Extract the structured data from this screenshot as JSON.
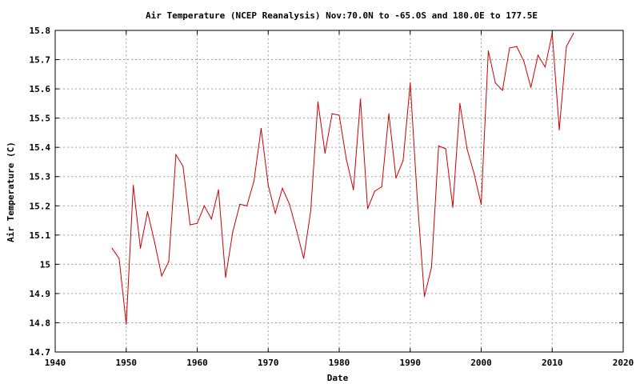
{
  "chart_data": {
    "type": "line",
    "title": "Air Temperature (NCEP Reanalysis) Nov:70.0N to -65.0S and 180.0E to 177.5E",
    "xlabel": "Date",
    "ylabel": "Air Temperature (C)",
    "xlim": [
      1940,
      2020
    ],
    "ylim": [
      14.7,
      15.8
    ],
    "xticks": [
      "1940",
      "1950",
      "1960",
      "1970",
      "1980",
      "1990",
      "2000",
      "2010",
      "2020"
    ],
    "yticks": [
      "14.7",
      "14.8",
      "14.9",
      "15",
      "15.1",
      "15.2",
      "15.3",
      "15.4",
      "15.5",
      "15.6",
      "15.7",
      "15.8"
    ],
    "grid": true,
    "color": "#cc0000",
    "series": [
      {
        "x": [
          1948,
          1949,
          1950,
          1951,
          1952,
          1953,
          1954,
          1955,
          1956,
          1957,
          1958,
          1959,
          1960,
          1961,
          1962,
          1963,
          1964,
          1965,
          1966,
          1967,
          1968,
          1969,
          1970,
          1971,
          1972,
          1973,
          1974,
          1975,
          1976,
          1977,
          1978,
          1979,
          1980,
          1981,
          1982,
          1983,
          1984,
          1985,
          1986,
          1987,
          1988,
          1989,
          1990,
          1991,
          1992,
          1993,
          1994,
          1995,
          1996,
          1997,
          1998,
          1999,
          2000,
          2001,
          2002,
          2003,
          2004,
          2005,
          2006,
          2007,
          2008,
          2009,
          2010,
          2011,
          2012,
          2013
        ],
        "y": [
          15.055,
          15.02,
          14.795,
          15.27,
          15.055,
          15.18,
          15.075,
          14.96,
          15.01,
          15.375,
          15.335,
          15.135,
          15.14,
          15.2,
          15.155,
          15.255,
          14.955,
          15.11,
          15.205,
          15.2,
          15.285,
          15.465,
          15.27,
          15.175,
          15.26,
          15.205,
          15.115,
          15.02,
          15.185,
          15.555,
          15.38,
          15.515,
          15.51,
          15.36,
          15.255,
          15.565,
          15.19,
          15.25,
          15.265,
          15.515,
          15.295,
          15.355,
          15.62,
          15.225,
          14.89,
          14.99,
          15.405,
          15.395,
          15.195,
          15.55,
          15.395,
          15.31,
          15.205,
          15.73,
          15.62,
          15.595,
          15.74,
          15.745,
          15.695,
          15.605,
          15.715,
          15.675,
          15.79,
          15.46,
          15.745,
          15.79
        ]
      }
    ]
  }
}
